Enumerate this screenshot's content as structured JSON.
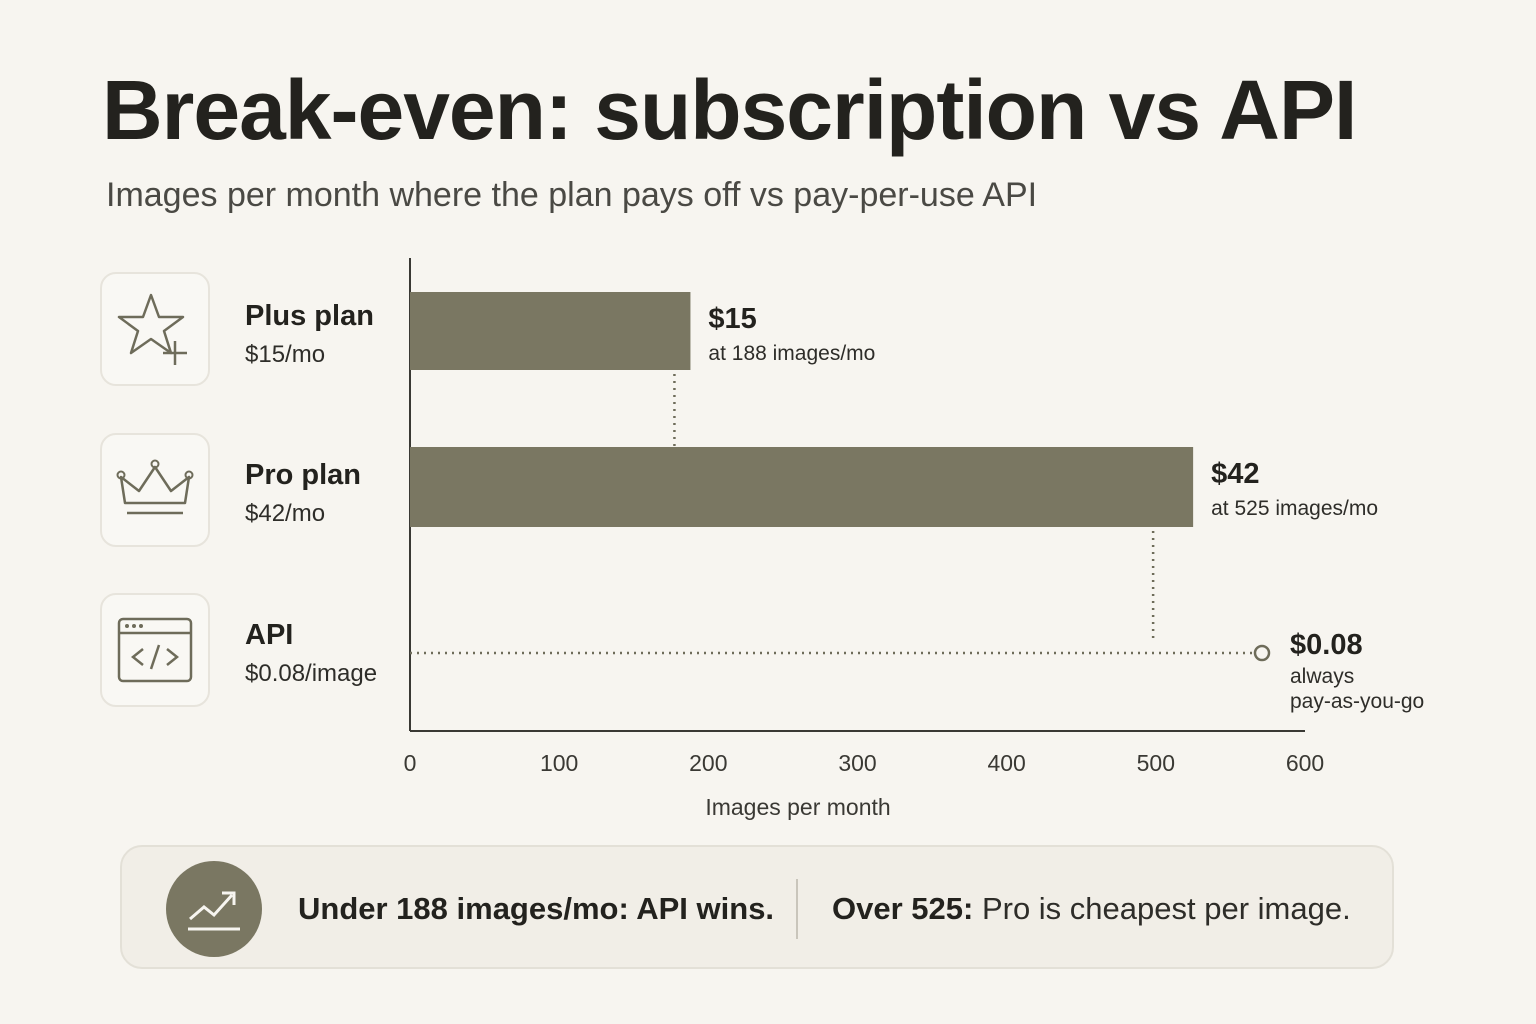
{
  "header": {
    "title": "Break-even: subscription vs API",
    "subtitle": "Images per month where the plan pays off vs pay-per-use API"
  },
  "rows": [
    {
      "name": "Plus plan",
      "price": "$15/mo",
      "icon": "star-plus-icon"
    },
    {
      "name": "Pro plan",
      "price": "$42/mo",
      "icon": "crown-icon"
    },
    {
      "name": "API",
      "price": "$0.08/image",
      "icon": "code-window-icon"
    }
  ],
  "chart_data": {
    "type": "bar",
    "orientation": "horizontal",
    "categories": [
      "Plus plan",
      "Pro plan",
      "API"
    ],
    "values": [
      188,
      525,
      null
    ],
    "xlabel": "Images per month",
    "xlim": [
      0,
      600
    ],
    "xticks": [
      0,
      100,
      200,
      300,
      400,
      500,
      600
    ],
    "bar_labels": [
      {
        "value": "$15",
        "note": "at 188 images/mo"
      },
      {
        "value": "$42",
        "note": "at 525 images/mo"
      },
      {
        "value": "$0.08",
        "note_lines": [
          "always",
          "pay-as-you-go"
        ]
      }
    ],
    "api_line": {
      "style": "dotted",
      "end_marker": "open-circle"
    },
    "bar_color": "#7a7762"
  },
  "summary": {
    "icon": "trend-up-icon",
    "left": "Under 188 images/mo: API wins.",
    "right_bold": "Over 525:",
    "right_rest": " Pro is cheapest per image."
  }
}
